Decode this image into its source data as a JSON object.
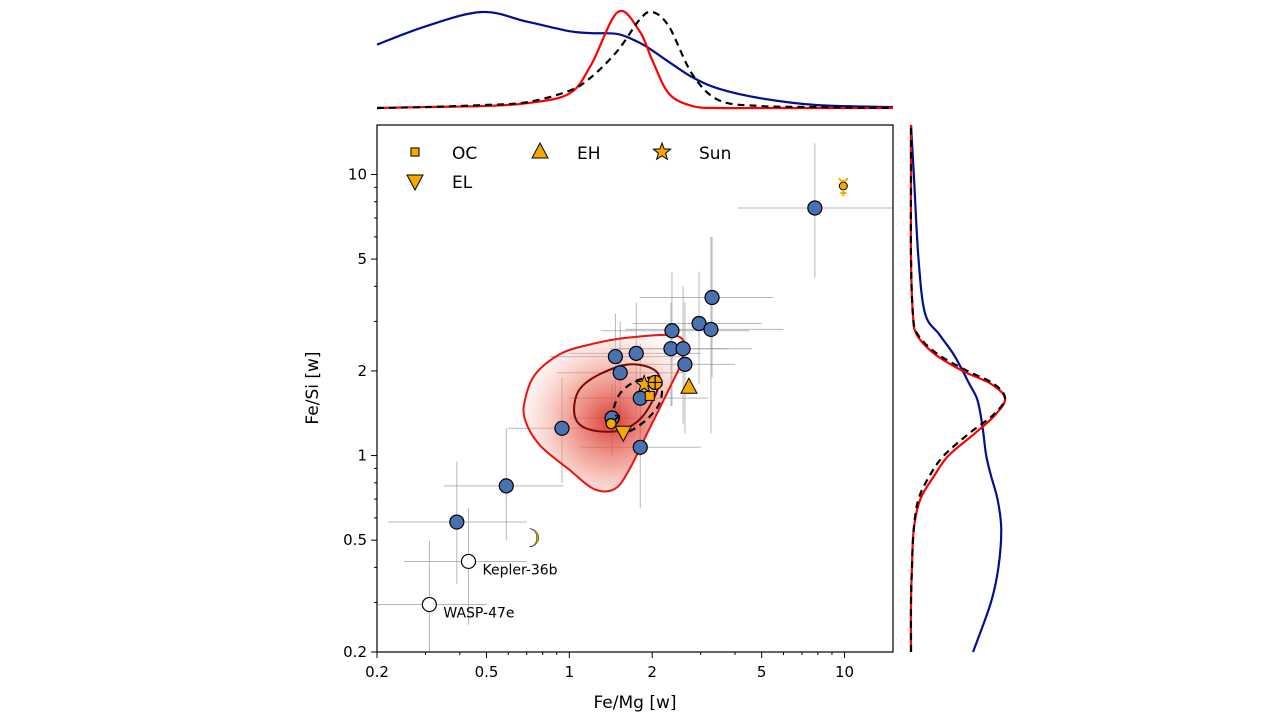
{
  "chart_data": {
    "type": "scatter",
    "xlabel": "Fe/Mg [w]",
    "ylabel": "Fe/Si [w]",
    "xscale": "log",
    "yscale": "log",
    "xlim": [
      0.2,
      15
    ],
    "ylim": [
      0.2,
      15
    ],
    "xticks": [
      0.2,
      0.5,
      1,
      2,
      5,
      10
    ],
    "xtick_labels": [
      "0.2",
      "0.5",
      "1",
      "2",
      "5",
      "10"
    ],
    "yticks": [
      0.2,
      0.5,
      1,
      2,
      5,
      10
    ],
    "ytick_labels": [
      "0.2",
      "0.5",
      "1",
      "2",
      "5",
      "10"
    ],
    "grid": false,
    "legend_placement": "top-left",
    "colors": {
      "planets": "#4a72b0",
      "marker_orange": "#f5a800",
      "contour_red": "#ee1111",
      "contour_darkred": "#7a0a0a",
      "kde_blue": "#00118f",
      "kde_red": "#ff0000",
      "kde_black": "#000000",
      "errorbar": "#999999"
    },
    "legend": [
      {
        "label": "OC",
        "marker": "square"
      },
      {
        "label": "EH",
        "marker": "triangle-up"
      },
      {
        "label": "Sun",
        "marker": "star"
      },
      {
        "label": "EL",
        "marker": "triangle-down"
      }
    ],
    "exoplanets": [
      {
        "x": 7.8,
        "y": 7.6,
        "xerr": [
          4.1,
          15
        ],
        "yerr": [
          4.3,
          12.9
        ]
      },
      {
        "x": 3.3,
        "y": 3.65,
        "xerr": [
          1.8,
          5.5
        ],
        "yerr": [
          1.9,
          6
        ]
      },
      {
        "x": 2.96,
        "y": 2.95,
        "xerr": [
          1.7,
          5
        ],
        "yerr": [
          1.8,
          4.5
        ]
      },
      {
        "x": 3.27,
        "y": 2.81,
        "xerr": [
          1.6,
          6
        ],
        "yerr": [
          1.2,
          6
        ]
      },
      {
        "x": 2.36,
        "y": 2.78,
        "xerr": [
          1.3,
          4.5
        ],
        "yerr": [
          1.5,
          4.5
        ]
      },
      {
        "x": 2.34,
        "y": 2.4,
        "xerr": [
          1.4,
          3.8
        ],
        "yerr": [
          1.5,
          3.5
        ]
      },
      {
        "x": 2.59,
        "y": 2.4,
        "xerr": [
          1.5,
          4.6
        ],
        "yerr": [
          1.3,
          4
        ]
      },
      {
        "x": 2.63,
        "y": 2.11,
        "xerr": [
          1.5,
          4
        ],
        "yerr": [
          1.2,
          3.5
        ]
      },
      {
        "x": 1.75,
        "y": 2.31,
        "xerr": [
          1.0,
          3.0
        ],
        "yerr": [
          1.4,
          3.5
        ]
      },
      {
        "x": 1.47,
        "y": 2.25,
        "xerr": [
          0.85,
          2.6
        ],
        "yerr": [
          1.4,
          3.2
        ]
      },
      {
        "x": 1.53,
        "y": 1.97,
        "xerr": [
          0.9,
          2.6
        ],
        "yerr": [
          1.2,
          3
        ]
      },
      {
        "x": 1.81,
        "y": 1.6,
        "xerr": [
          1.0,
          3.2
        ],
        "yerr": [
          1.0,
          2.5
        ]
      },
      {
        "x": 1.81,
        "y": 1.07,
        "xerr": [
          1.1,
          3.0
        ],
        "yerr": [
          0.65,
          1.6
        ]
      },
      {
        "x": 0.94,
        "y": 1.25,
        "xerr": [
          0.6,
          1.5
        ],
        "yerr": [
          0.8,
          1.9
        ]
      },
      {
        "x": 0.59,
        "y": 0.78,
        "xerr": [
          0.35,
          0.95
        ],
        "yerr": [
          0.5,
          1.25
        ]
      },
      {
        "x": 0.39,
        "y": 0.58,
        "xerr": [
          0.22,
          0.7
        ],
        "yerr": [
          0.35,
          0.95
        ]
      },
      {
        "x": 1.43,
        "y": 1.36,
        "xerr": [
          1.0,
          2.0
        ],
        "yerr": [
          1.0,
          1.8
        ]
      }
    ],
    "labeled_exoplanets": [
      {
        "label": "Kepler-36b",
        "x": 0.43,
        "y": 0.42,
        "xerr": [
          0.25,
          0.7
        ],
        "yerr": [
          0.25,
          0.65
        ]
      },
      {
        "label": "WASP-47e",
        "x": 0.31,
        "y": 0.295,
        "xerr": [
          0.2,
          0.5
        ],
        "yerr": [
          0.2,
          0.5
        ]
      }
    ],
    "references": [
      {
        "name": "OC",
        "marker": "square",
        "x": 1.96,
        "y": 1.63
      },
      {
        "name": "EH",
        "marker": "triangle-up",
        "x": 2.72,
        "y": 1.75
      },
      {
        "name": "EL",
        "marker": "triangle-down",
        "x": 1.57,
        "y": 1.21
      },
      {
        "name": "Sun",
        "marker": "star",
        "x": 1.87,
        "y": 1.79
      },
      {
        "name": "Earth",
        "marker": "earth-symbol",
        "x": 2.05,
        "y": 1.82
      },
      {
        "name": "Mars",
        "marker": "mars-symbol",
        "x": 1.43,
        "y": 1.31
      },
      {
        "name": "Mercury",
        "marker": "mercury-symbol",
        "x": 9.9,
        "y": 9.1
      },
      {
        "name": "Moon",
        "marker": "moon-symbol",
        "x": 0.73,
        "y": 0.51
      }
    ],
    "contours": [
      {
        "style": "red-outer",
        "points": [
          [
            0.69,
            1.58
          ],
          [
            0.75,
            1.94
          ],
          [
            0.92,
            2.29
          ],
          [
            1.18,
            2.48
          ],
          [
            1.65,
            2.63
          ],
          [
            2.5,
            2.65
          ],
          [
            2.57,
            2.2
          ],
          [
            2.3,
            1.72
          ],
          [
            1.95,
            1.24
          ],
          [
            1.65,
            0.89
          ],
          [
            1.46,
            0.76
          ],
          [
            1.23,
            0.76
          ],
          [
            1.0,
            0.89
          ],
          [
            0.78,
            1.09
          ],
          [
            0.69,
            1.34
          ]
        ]
      },
      {
        "style": "darkred-inner",
        "points": [
          [
            1.04,
            1.46
          ],
          [
            1.09,
            1.72
          ],
          [
            1.28,
            1.94
          ],
          [
            1.65,
            2.11
          ],
          [
            2.03,
            2.02
          ],
          [
            2.12,
            1.79
          ],
          [
            1.87,
            1.4
          ],
          [
            1.58,
            1.24
          ],
          [
            1.28,
            1.22
          ],
          [
            1.09,
            1.29
          ]
        ]
      },
      {
        "style": "black-dashed",
        "points": [
          [
            1.42,
            1.34
          ],
          [
            1.52,
            1.65
          ],
          [
            1.79,
            1.86
          ],
          [
            2.12,
            1.86
          ],
          [
            2.15,
            1.58
          ],
          [
            1.95,
            1.37
          ],
          [
            1.65,
            1.22
          ],
          [
            1.44,
            1.24
          ]
        ]
      }
    ],
    "marginal_top": {
      "x": [
        0.2,
        0.3,
        0.48,
        0.7,
        1.0,
        1.2,
        1.5,
        1.8,
        2.0,
        2.3,
        2.8,
        3.5,
        5,
        8,
        15
      ],
      "blue": [
        0.66,
        0.85,
        1.0,
        0.9,
        0.8,
        0.78,
        0.77,
        0.68,
        0.6,
        0.48,
        0.32,
        0.2,
        0.1,
        0.03,
        0.01
      ],
      "red": [
        0,
        0.01,
        0.02,
        0.05,
        0.15,
        0.45,
        1.0,
        0.8,
        0.5,
        0.15,
        0.02,
        0,
        0,
        0,
        0
      ],
      "black": [
        0,
        0.01,
        0.03,
        0.06,
        0.18,
        0.32,
        0.6,
        0.92,
        1.0,
        0.85,
        0.35,
        0.08,
        0.02,
        0.01,
        0
      ]
    },
    "marginal_right": {
      "y": [
        0.2,
        0.3,
        0.4,
        0.55,
        0.7,
        0.85,
        1.0,
        1.2,
        1.4,
        1.6,
        1.8,
        2.0,
        2.3,
        2.7,
        3.2,
        5,
        10,
        15
      ],
      "blue": [
        0.66,
        0.85,
        0.93,
        0.96,
        0.92,
        0.85,
        0.8,
        0.77,
        0.74,
        0.7,
        0.62,
        0.55,
        0.45,
        0.3,
        0.15,
        0.08,
        0.03,
        0.0
      ],
      "red": [
        0,
        0,
        0.01,
        0.03,
        0.1,
        0.25,
        0.4,
        0.68,
        0.9,
        1.0,
        0.85,
        0.55,
        0.25,
        0.06,
        0.02,
        0,
        0,
        0
      ],
      "black": [
        0,
        0,
        0.01,
        0.03,
        0.08,
        0.2,
        0.35,
        0.62,
        0.88,
        1.0,
        0.88,
        0.6,
        0.28,
        0.07,
        0.02,
        0,
        0,
        0
      ]
    }
  }
}
